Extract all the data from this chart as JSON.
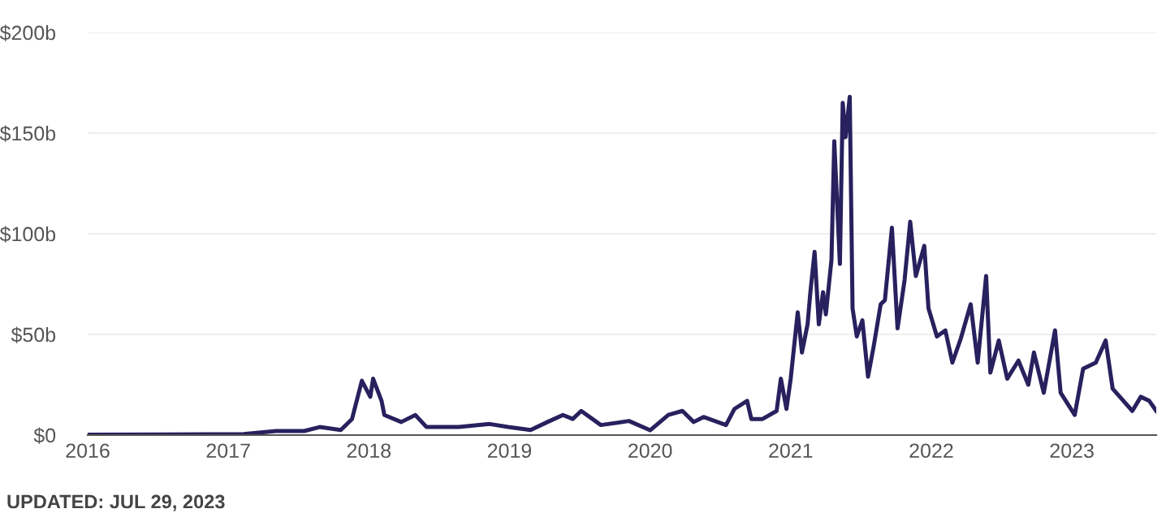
{
  "chart_data": {
    "type": "line",
    "x": [
      2016.0,
      2016.53,
      2017.11,
      2017.34,
      2017.54,
      2017.65,
      2017.8,
      2017.88,
      2017.95,
      2018.01,
      2018.03,
      2018.09,
      2018.11,
      2018.23,
      2018.33,
      2018.41,
      2018.64,
      2018.86,
      2018.99,
      2019.15,
      2019.27,
      2019.38,
      2019.45,
      2019.51,
      2019.65,
      2019.85,
      2020.0,
      2020.13,
      2020.23,
      2020.31,
      2020.38,
      2020.54,
      2020.6,
      2020.69,
      2020.72,
      2020.8,
      2020.9,
      2020.93,
      2020.97,
      2021.0,
      2021.05,
      2021.08,
      2021.12,
      2021.14,
      2021.17,
      2021.2,
      2021.23,
      2021.25,
      2021.29,
      2021.31,
      2021.35,
      2021.37,
      2021.39,
      2021.42,
      2021.44,
      2021.47,
      2021.51,
      2021.55,
      2021.59,
      2021.64,
      2021.67,
      2021.72,
      2021.76,
      2021.81,
      2021.85,
      2021.89,
      2021.95,
      2021.98,
      2022.04,
      2022.1,
      2022.15,
      2022.21,
      2022.28,
      2022.33,
      2022.39,
      2022.42,
      2022.48,
      2022.54,
      2022.62,
      2022.69,
      2022.73,
      2022.8,
      2022.88,
      2022.92,
      2023.02,
      2023.08,
      2023.17,
      2023.24,
      2023.29,
      2023.43,
      2023.49,
      2023.55,
      2023.6
    ],
    "series": [
      {
        "color": "#27215e",
        "values": [
          0.2,
          0.3,
          0.5,
          2,
          2,
          4,
          2.5,
          8,
          27,
          19,
          28,
          17,
          10,
          6.5,
          10,
          4,
          4,
          5.5,
          4,
          2.5,
          6.5,
          10,
          8,
          12,
          5,
          7,
          2.4,
          10,
          12,
          6.5,
          9,
          5,
          13,
          17,
          8,
          8,
          12,
          28,
          13,
          28,
          61,
          41,
          55,
          71,
          91,
          55,
          71,
          60,
          87,
          146,
          85,
          165,
          148,
          168,
          63,
          49,
          57,
          29,
          44,
          65,
          67,
          103,
          53,
          77,
          106,
          79,
          94,
          63,
          49,
          52,
          36,
          48,
          65,
          36,
          79,
          31,
          47,
          28,
          37,
          25,
          41,
          21,
          52,
          21,
          10,
          33,
          36,
          47,
          23,
          12,
          19,
          17,
          12
        ]
      }
    ],
    "xlim": [
      2016,
      2023.6
    ],
    "xticks": [
      2016,
      2017,
      2018,
      2019,
      2020,
      2021,
      2022,
      2023
    ],
    "ylim": [
      0,
      200
    ],
    "yticks": [
      {
        "value": 0,
        "label": "$0"
      },
      {
        "value": 50,
        "label": "$50b"
      },
      {
        "value": 100,
        "label": "$100b"
      },
      {
        "value": 150,
        "label": "$150b"
      },
      {
        "value": 200,
        "label": "$200b"
      }
    ],
    "grid": "y",
    "line_style": "solid",
    "annotations": [
      "UPDATED: JUL 29, 2023"
    ]
  }
}
